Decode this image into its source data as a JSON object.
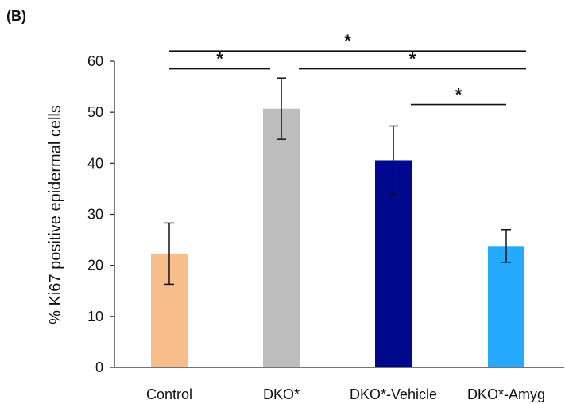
{
  "panel_label": "(B)",
  "chart_data": {
    "type": "bar",
    "categories": [
      "Control",
      "DKO*",
      "DKO*-Vehicle",
      "DKO*-Amyg"
    ],
    "values": [
      22.3,
      50.7,
      40.6,
      23.8
    ],
    "errors": [
      6.0,
      6.0,
      6.7,
      3.2
    ],
    "colors": [
      "#f7be8c",
      "#bdbdbd",
      "#00088e",
      "#25aaff"
    ],
    "ylabel": "% Ki67 positive epidermal cells",
    "xlabel": "",
    "ylim": [
      0,
      60
    ],
    "yticks": [
      0,
      10,
      20,
      30,
      40,
      50,
      60
    ],
    "grid": false,
    "significance": [
      {
        "from": 0,
        "to": 3,
        "level": 62,
        "label": "*"
      },
      {
        "from": 0,
        "to": 1,
        "level": 58.5,
        "label": "*"
      },
      {
        "from": 1,
        "to": 3,
        "level": 58.5,
        "label": "*"
      },
      {
        "from": 2,
        "to": 3,
        "level": 51.5,
        "label": "*"
      }
    ]
  }
}
